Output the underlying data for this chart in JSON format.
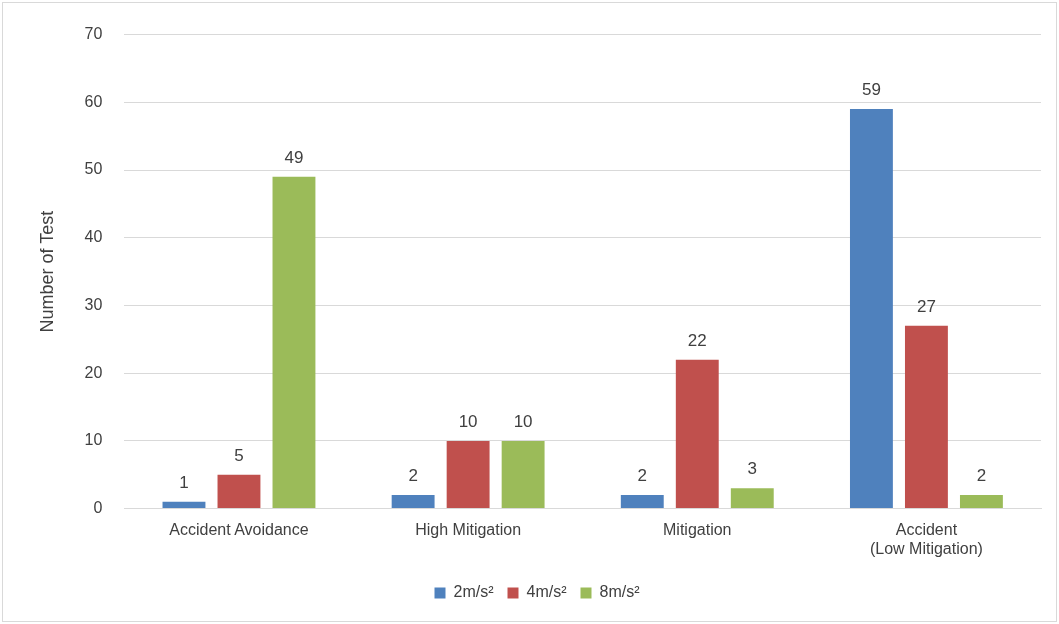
{
  "chart_data": {
    "type": "bar",
    "ylabel": "Number of Test",
    "categories": [
      "Accident Avoidance",
      "High Mitigation",
      "Mitigation",
      "Accident\n(Low Mitigation)"
    ],
    "series": [
      {
        "name": "2m/s²",
        "color": "#4f81bd",
        "values": [
          1,
          2,
          2,
          59
        ]
      },
      {
        "name": "4m/s²",
        "color": "#c0504d",
        "values": [
          5,
          10,
          22,
          27
        ]
      },
      {
        "name": "8m/s²",
        "color": "#9bbb59",
        "values": [
          49,
          10,
          3,
          2
        ]
      }
    ],
    "ylim": [
      0,
      70
    ],
    "yticks": [
      0,
      10,
      20,
      30,
      40,
      50,
      60,
      70
    ],
    "grid": "y",
    "legend": "bottom",
    "data_labels": true
  }
}
